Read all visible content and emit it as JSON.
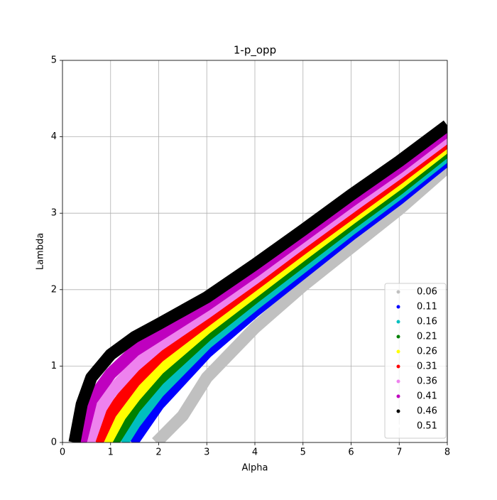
{
  "chart_data": {
    "type": "line",
    "title": "1-p_opp",
    "x_label": "Alpha",
    "y_label": "Lambda",
    "xlim": [
      0,
      8
    ],
    "ylim": [
      0,
      5
    ],
    "xticks": [
      0,
      1,
      2,
      3,
      4,
      5,
      6,
      7,
      8
    ],
    "yticks": [
      0,
      1,
      2,
      3,
      4,
      5
    ],
    "grid": true,
    "legend": "lower right",
    "series": [
      {
        "name": "0.06",
        "color": "#c0c0c0",
        "x": [
          1.95,
          2.5,
          3,
          4,
          5,
          6,
          7,
          8
        ],
        "values": [
          0,
          0.35,
          0.85,
          1.5,
          2.05,
          2.55,
          3.05,
          3.6
        ]
      },
      {
        "name": "0.11",
        "color": "#0000ff",
        "x": [
          1.45,
          2,
          3,
          4,
          5,
          6,
          7,
          8
        ],
        "values": [
          0,
          0.5,
          1.18,
          1.72,
          2.22,
          2.72,
          3.19,
          3.7
        ]
      },
      {
        "name": "0.16",
        "color": "#00bfbf",
        "x": [
          1.25,
          1.5,
          2,
          3,
          4,
          5,
          6,
          7,
          8
        ],
        "values": [
          0,
          0.25,
          0.66,
          1.3,
          1.81,
          2.3,
          2.79,
          3.26,
          3.76
        ]
      },
      {
        "name": "0.21",
        "color": "#008000",
        "x": [
          1.05,
          1.5,
          2,
          3,
          4,
          5,
          6,
          7,
          8
        ],
        "values": [
          0,
          0.45,
          0.82,
          1.4,
          1.9,
          2.38,
          2.86,
          3.32,
          3.82
        ]
      },
      {
        "name": "0.26",
        "color": "#ffff00",
        "x": [
          0.9,
          1.2,
          1.5,
          2,
          3,
          4,
          5,
          6,
          7,
          8
        ],
        "values": [
          0,
          0.35,
          0.6,
          0.96,
          1.5,
          1.98,
          2.46,
          2.93,
          3.39,
          3.88
        ]
      },
      {
        "name": "0.31",
        "color": "#ff0000",
        "x": [
          0.72,
          1,
          1.5,
          2,
          3,
          4,
          5,
          6,
          7,
          8
        ],
        "values": [
          0,
          0.38,
          0.8,
          1.12,
          1.6,
          2.07,
          2.54,
          3.0,
          3.46,
          3.94
        ]
      },
      {
        "name": "0.36",
        "color": "#ee82ee",
        "x": [
          0.55,
          0.8,
          1,
          1.5,
          2,
          3,
          4,
          5,
          6,
          7,
          8
        ],
        "values": [
          0,
          0.45,
          0.65,
          1.0,
          1.27,
          1.7,
          2.15,
          2.62,
          3.08,
          3.53,
          4.0
        ]
      },
      {
        "name": "0.41",
        "color": "#bf00bf",
        "x": [
          0.38,
          0.6,
          1,
          1.5,
          2,
          3,
          4,
          5,
          6,
          7,
          8
        ],
        "values": [
          0,
          0.55,
          0.9,
          1.2,
          1.4,
          1.8,
          2.24,
          2.7,
          3.16,
          3.6,
          4.08
        ]
      },
      {
        "name": "0.46",
        "color": "#000000",
        "x": [
          0.25,
          0.4,
          0.6,
          1,
          1.5,
          2,
          3,
          4,
          5,
          6,
          7,
          8
        ],
        "values": [
          0,
          0.5,
          0.85,
          1.15,
          1.38,
          1.55,
          1.9,
          2.33,
          2.78,
          3.24,
          3.68,
          4.15
        ]
      },
      {
        "name": "0.51",
        "color": "#ffffff",
        "x": [],
        "values": []
      }
    ]
  }
}
